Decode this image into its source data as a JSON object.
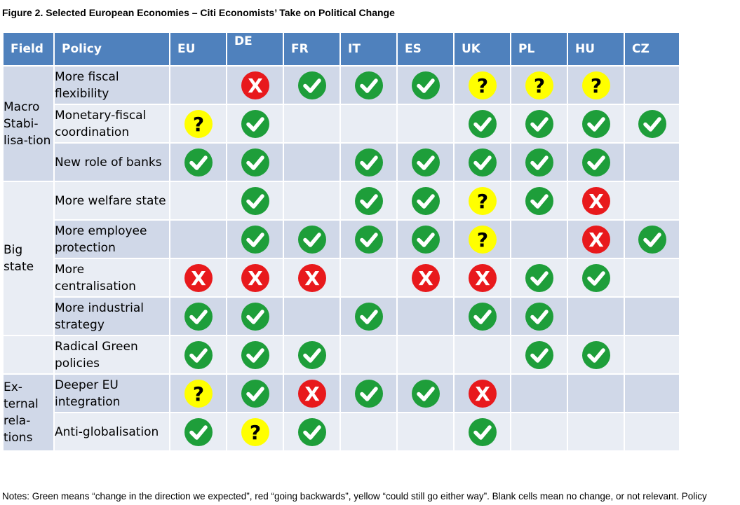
{
  "figure_title": "Figure 2. Selected European Economies – Citi Economists’ Take on Political Change",
  "headers": {
    "field": "Field",
    "policy": "Policy",
    "countries": [
      "EU",
      "DE",
      "FR",
      "IT",
      "ES",
      "UK",
      "PL",
      "HU",
      "CZ"
    ]
  },
  "fields": [
    "Macro Stabi-lisa-tion",
    "Big state",
    "",
    "Ex-ternal rela-tions"
  ],
  "policies": [
    {
      "label": "More fiscal flexibility",
      "marks": [
        "",
        "red",
        "green",
        "green",
        "green",
        "yellow",
        "yellow",
        "yellow",
        ""
      ]
    },
    {
      "label": "Monetary-fiscal coordination",
      "marks": [
        "yellow",
        "green",
        "",
        "",
        "",
        "green",
        "green",
        "green",
        "green"
      ]
    },
    {
      "label": "New role of banks",
      "marks": [
        "green",
        "green",
        "",
        "green",
        "green",
        "green",
        "green",
        "green",
        ""
      ]
    },
    {
      "label": "More welfare state",
      "marks": [
        "",
        "green",
        "",
        "green",
        "green",
        "yellow",
        "green",
        "red",
        ""
      ]
    },
    {
      "label": "More employee protection",
      "marks": [
        "",
        "green",
        "green",
        "green",
        "green",
        "yellow",
        "",
        "red",
        "green"
      ]
    },
    {
      "label": "More centralisation",
      "marks": [
        "red",
        "red",
        "red",
        "",
        "red",
        "red",
        "green",
        "green",
        ""
      ]
    },
    {
      "label": "More industrial strategy",
      "marks": [
        "green",
        "green",
        "",
        "green",
        "",
        "green",
        "green",
        "",
        ""
      ]
    },
    {
      "label": "Radical Green policies",
      "marks": [
        "green",
        "green",
        "green",
        "",
        "",
        "",
        "green",
        "green",
        ""
      ]
    },
    {
      "label": "Deeper EU integration",
      "marks": [
        "yellow",
        "green",
        "red",
        "green",
        "green",
        "red",
        "",
        "",
        ""
      ]
    },
    {
      "label": "Anti-globalisation",
      "marks": [
        "green",
        "yellow",
        "green",
        "",
        "",
        "green",
        "",
        "",
        ""
      ]
    }
  ],
  "mark_symbols": {
    "red": "X",
    "yellow": "?"
  },
  "colors": {
    "header_bg": "#4f81bd",
    "row_odd": "#d0d8e8",
    "row_even": "#e9edf4",
    "green": "#1e9e3a",
    "red": "#e8191c",
    "yellow": "#ffff00"
  },
  "notes": "Notes: Green means “change in the direction we expected”, red “going backwards”, yellow “could still go either way”. Blank cells mean no change, or not relevant. Policy"
}
